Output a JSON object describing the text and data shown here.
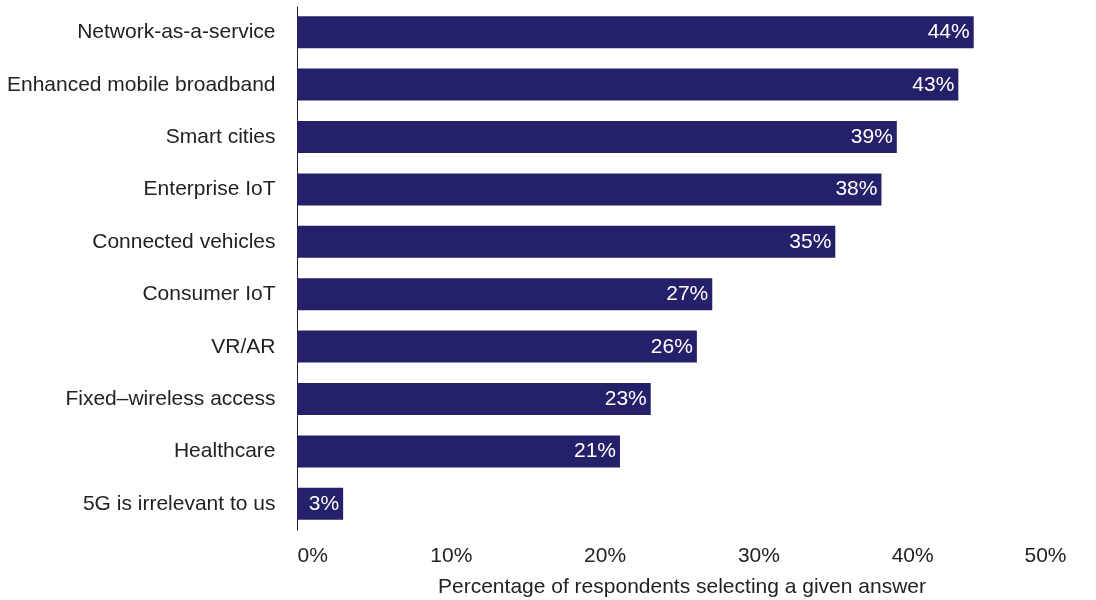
{
  "chart_data": {
    "type": "bar",
    "orientation": "horizontal",
    "categories": [
      "Network-as-a-service",
      "Enhanced mobile broadband",
      "Smart cities",
      "Enterprise IoT",
      "Connected vehicles",
      "Consumer IoT",
      "VR/AR",
      "Fixed–wireless access",
      "Healthcare",
      "5G is irrelevant to us"
    ],
    "values": [
      44,
      43,
      39,
      38,
      35,
      27,
      26,
      23,
      21,
      3
    ],
    "value_labels": [
      "44%",
      "43%",
      "39%",
      "38%",
      "35%",
      "27%",
      "26%",
      "23%",
      "21%",
      "3%"
    ],
    "color": "#24216a",
    "xlim": [
      0,
      50
    ],
    "xticks": [
      {
        "value": 0,
        "label": "0%"
      },
      {
        "value": 10,
        "label": "10%"
      },
      {
        "value": 20,
        "label": "20%"
      },
      {
        "value": 30,
        "label": "30%"
      },
      {
        "value": 40,
        "label": "40%"
      },
      {
        "value": 50,
        "label": "50%"
      }
    ],
    "xlabel": "Percentage of respondents selecting a given answer",
    "grid": false
  }
}
